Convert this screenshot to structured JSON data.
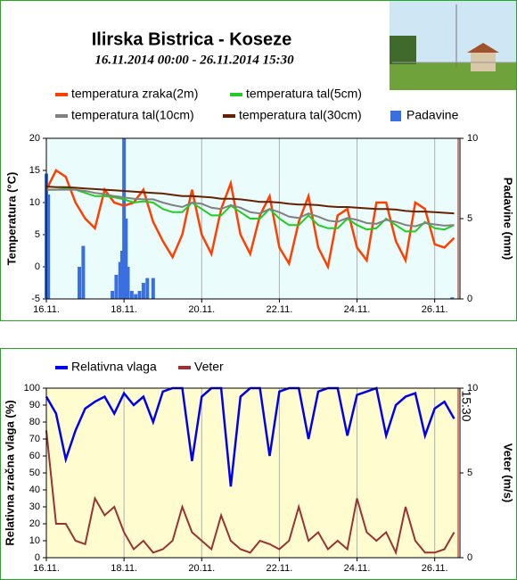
{
  "title": "Ilirska Bistrica - Koseze",
  "subtitle": "16.11.2014 00:00 - 26.11.2014 15:30",
  "chart_data": [
    {
      "type": "line",
      "ylabel": "Temperatura (°C)",
      "y2label": "Padavine (mm)",
      "xlim": [
        0,
        10.65
      ],
      "xticks": [
        {
          "value": 0,
          "label": "16.11."
        },
        {
          "value": 2,
          "label": "18.11."
        },
        {
          "value": 4,
          "label": "20.11."
        },
        {
          "value": 6,
          "label": "22.11."
        },
        {
          "value": 8,
          "label": "24.11."
        },
        {
          "value": 10,
          "label": "26.11."
        }
      ],
      "ylim": [
        -5,
        20
      ],
      "yticks": [
        -5,
        0,
        5,
        10,
        15,
        20
      ],
      "y2lim": [
        0,
        10
      ],
      "y2ticks": [
        0,
        5,
        10
      ],
      "grid": true,
      "x": [
        0,
        0.25,
        0.5,
        0.75,
        1,
        1.25,
        1.5,
        1.75,
        2,
        2.25,
        2.5,
        2.75,
        3,
        3.25,
        3.5,
        3.75,
        4,
        4.25,
        4.5,
        4.75,
        5,
        5.25,
        5.5,
        5.75,
        6,
        6.25,
        6.5,
        6.75,
        7,
        7.25,
        7.5,
        7.75,
        8,
        8.25,
        8.5,
        8.75,
        9,
        9.25,
        9.5,
        9.75,
        10,
        10.25,
        10.5
      ],
      "series": [
        {
          "name": "temperatura zraka(2m)",
          "color": "#ff4000",
          "values": [
            12,
            15,
            14,
            10,
            7.5,
            6,
            12,
            10,
            9.5,
            10,
            12,
            7,
            4,
            1.5,
            5,
            12,
            5,
            2,
            9,
            13,
            5,
            2,
            8,
            11,
            3,
            0.5,
            7,
            11,
            3,
            0,
            8,
            9,
            3,
            1,
            10,
            10,
            4,
            1,
            10,
            9,
            3.5,
            3,
            4.5
          ]
        },
        {
          "name": "temperatura tal(5cm)",
          "color": "#22cc22",
          "values": [
            12,
            12,
            12.2,
            12,
            11.5,
            11,
            11,
            10.8,
            10.5,
            10,
            10.2,
            10,
            9,
            8.5,
            8.5,
            10,
            9,
            8,
            8,
            9.5,
            8.5,
            7.5,
            7.5,
            9,
            7.5,
            6.5,
            6.5,
            8,
            6.5,
            6,
            6,
            7.5,
            6.5,
            5.8,
            6,
            7.5,
            6.5,
            5.5,
            5.5,
            7,
            6,
            5.8,
            6.5
          ]
        },
        {
          "name": "temperatura tal(10cm)",
          "color": "#808080",
          "values": [
            12,
            12,
            12,
            12,
            11.8,
            11.5,
            11.3,
            11,
            10.8,
            10.6,
            10.5,
            10.5,
            10,
            9.6,
            9.3,
            10,
            9.8,
            9.2,
            9,
            9.6,
            9.2,
            8.5,
            8.3,
            9,
            8.5,
            7.8,
            7.6,
            8.3,
            7.8,
            7.2,
            7,
            7.6,
            7.3,
            6.8,
            6.7,
            7.3,
            7,
            6.5,
            6.3,
            6.8,
            6.6,
            6.4,
            6.5
          ]
        },
        {
          "name": "temperatura tal(30cm)",
          "color": "#662200",
          "values": [
            12.5,
            12.4,
            12.4,
            12.3,
            12.2,
            12.1,
            12,
            11.9,
            11.8,
            11.7,
            11.6,
            11.5,
            11.4,
            11.2,
            11,
            11,
            10.9,
            10.8,
            10.6,
            10.6,
            10.5,
            10.3,
            10.1,
            10.1,
            10,
            9.8,
            9.7,
            9.7,
            9.6,
            9.4,
            9.3,
            9.3,
            9.2,
            9.1,
            9,
            9,
            8.9,
            8.7,
            8.6,
            8.6,
            8.5,
            8.4,
            8.3
          ]
        },
        {
          "name": "Padavine",
          "type": "bar",
          "axis": "y2",
          "color": "#3a6fe0",
          "x": [
            0,
            0.05,
            0.85,
            0.95,
            1.7,
            1.8,
            1.9,
            1.95,
            2,
            2.05,
            2.1,
            2.2,
            2.3,
            2.4,
            2.5,
            2.6,
            2.75,
            10.45
          ],
          "values": [
            7.8,
            6.5,
            2,
            3.3,
            0.5,
            1.5,
            2.3,
            3,
            10,
            5,
            2,
            0.5,
            0.3,
            0.5,
            1,
            1.3,
            1.3,
            0.1
          ]
        }
      ]
    },
    {
      "type": "line",
      "ylabel": "Relativna zračna vlaga (%)",
      "y2label": "Veter (m/s)",
      "annotation": "15:30",
      "xlim": [
        0,
        10.65
      ],
      "xticks": [
        {
          "value": 0,
          "label": "16.11."
        },
        {
          "value": 2,
          "label": "18.11."
        },
        {
          "value": 4,
          "label": "20.11."
        },
        {
          "value": 6,
          "label": "22.11."
        },
        {
          "value": 8,
          "label": "24.11."
        },
        {
          "value": 10,
          "label": "26.11."
        }
      ],
      "ylim": [
        0,
        100
      ],
      "yticks": [
        0,
        10,
        20,
        30,
        40,
        50,
        60,
        70,
        80,
        90,
        100
      ],
      "y2lim": [
        0,
        10
      ],
      "y2ticks": [
        0,
        5,
        10
      ],
      "grid": true,
      "x": [
        0,
        0.25,
        0.5,
        0.75,
        1,
        1.25,
        1.5,
        1.75,
        2,
        2.25,
        2.5,
        2.75,
        3,
        3.25,
        3.5,
        3.75,
        4,
        4.25,
        4.5,
        4.75,
        5,
        5.25,
        5.5,
        5.75,
        6,
        6.25,
        6.5,
        6.75,
        7,
        7.25,
        7.5,
        7.75,
        8,
        8.25,
        8.5,
        8.75,
        9,
        9.25,
        9.5,
        9.75,
        10,
        10.25,
        10.5
      ],
      "series": [
        {
          "name": "Relativna vlaga",
          "color": "#0000ee",
          "values": [
            95,
            85,
            58,
            75,
            88,
            92,
            95,
            85,
            97,
            90,
            95,
            80,
            98,
            100,
            100,
            57,
            95,
            100,
            100,
            42,
            95,
            100,
            100,
            60,
            98,
            100,
            100,
            70,
            98,
            100,
            100,
            72,
            96,
            98,
            100,
            72,
            90,
            95,
            97,
            72,
            88,
            92,
            82
          ]
        },
        {
          "name": "Veter",
          "axis": "y2",
          "color": "#993333",
          "values": [
            7.5,
            2,
            2,
            1,
            0.8,
            3.5,
            2.5,
            3,
            1.5,
            0.5,
            1,
            0.3,
            0.5,
            1,
            3,
            1.5,
            1,
            0.5,
            2.5,
            1,
            0.5,
            0.3,
            1,
            0.8,
            0.5,
            1,
            3,
            1,
            1.5,
            0.5,
            1,
            0.5,
            3.5,
            1.5,
            1,
            1.5,
            0.3,
            3,
            1,
            0.3,
            0.3,
            0.5,
            1.5
          ]
        }
      ]
    }
  ]
}
